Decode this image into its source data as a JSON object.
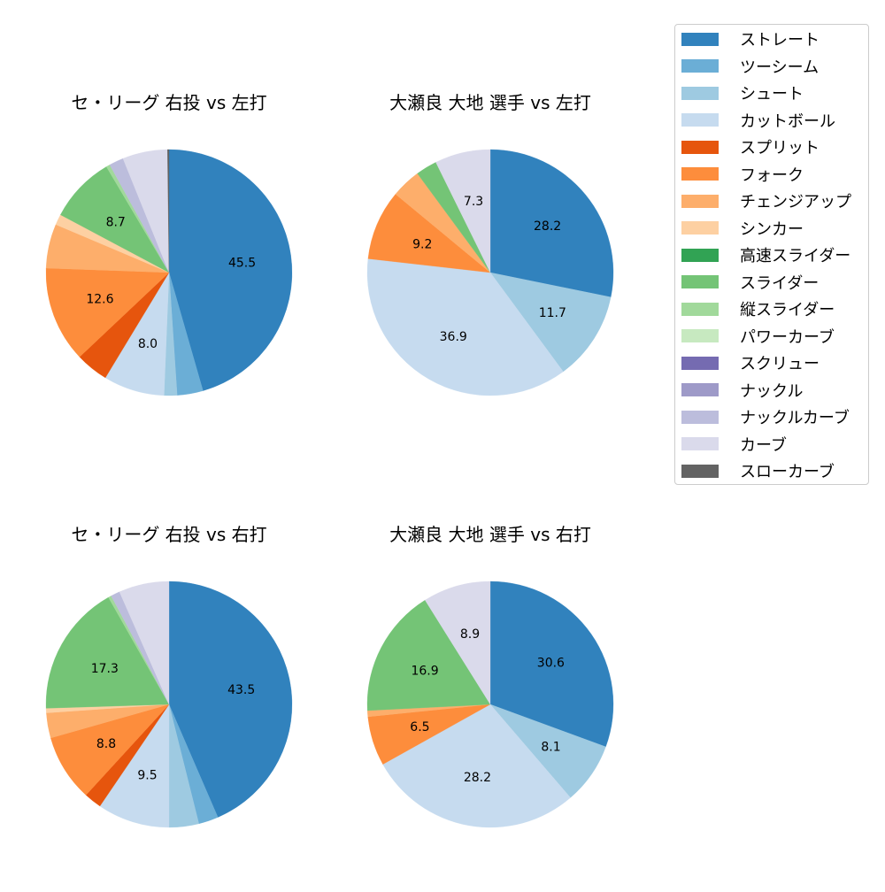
{
  "legend": {
    "items": [
      {
        "label": "ストレート",
        "color": "#3182bd"
      },
      {
        "label": "ツーシーム",
        "color": "#6baed6"
      },
      {
        "label": "シュート",
        "color": "#9ecae1"
      },
      {
        "label": "カットボール",
        "color": "#c6dbef"
      },
      {
        "label": "スプリット",
        "color": "#e6550d"
      },
      {
        "label": "フォーク",
        "color": "#fd8d3c"
      },
      {
        "label": "チェンジアップ",
        "color": "#fdae6b"
      },
      {
        "label": "シンカー",
        "color": "#fdd0a2"
      },
      {
        "label": "高速スライダー",
        "color": "#31a354"
      },
      {
        "label": "スライダー",
        "color": "#74c476"
      },
      {
        "label": "縦スライダー",
        "color": "#a1d99b"
      },
      {
        "label": "パワーカーブ",
        "color": "#c7e9c0"
      },
      {
        "label": "スクリュー",
        "color": "#756bb1"
      },
      {
        "label": "ナックル",
        "color": "#9e9ac8"
      },
      {
        "label": "ナックルカーブ",
        "color": "#bcbddc"
      },
      {
        "label": "カーブ",
        "color": "#dadaeb"
      },
      {
        "label": "スローカーブ",
        "color": "#636363"
      }
    ]
  },
  "chart_data": [
    {
      "type": "pie",
      "title": "セ・リーグ 右投 vs 左打",
      "categories": [
        "ストレート",
        "ツーシーム",
        "シュート",
        "カットボール",
        "スプリット",
        "フォーク",
        "チェンジアップ",
        "シンカー",
        "スライダー",
        "縦スライダー",
        "ナックルカーブ",
        "カーブ",
        "スローカーブ"
      ],
      "values": [
        45.5,
        3.4,
        1.7,
        8.0,
        4.3,
        12.6,
        5.8,
        1.4,
        8.7,
        0.5,
        1.9,
        5.9,
        0.2
      ],
      "labels_shown": [
        "45.5",
        "",
        "",
        "8.0",
        "",
        "12.6",
        "",
        "",
        "8.7",
        "",
        "",
        "",
        ""
      ],
      "start_angle": 90,
      "direction": "clockwise"
    },
    {
      "type": "pie",
      "title": "大瀬良 大地 選手 vs 左打",
      "categories": [
        "ストレート",
        "シュート",
        "カットボール",
        "フォーク",
        "チェンジアップ",
        "スライダー",
        "カーブ"
      ],
      "values": [
        28.2,
        11.7,
        36.9,
        9.2,
        3.9,
        2.8,
        7.3
      ],
      "labels_shown": [
        "28.2",
        "11.7",
        "36.9",
        "9.2",
        "",
        "",
        "7.3"
      ],
      "start_angle": 90,
      "direction": "clockwise"
    },
    {
      "type": "pie",
      "title": "セ・リーグ 右投 vs 右打",
      "categories": [
        "ストレート",
        "ツーシーム",
        "シュート",
        "カットボール",
        "スプリット",
        "フォーク",
        "チェンジアップ",
        "シンカー",
        "スライダー",
        "縦スライダー",
        "ナックルカーブ",
        "カーブ"
      ],
      "values": [
        43.5,
        2.6,
        3.9,
        9.5,
        2.3,
        8.8,
        3.3,
        0.6,
        17.3,
        0.4,
        1.2,
        6.6
      ],
      "labels_shown": [
        "43.5",
        "",
        "",
        "9.5",
        "",
        "8.8",
        "",
        "",
        "17.3",
        "",
        "",
        ""
      ],
      "start_angle": 90,
      "direction": "clockwise"
    },
    {
      "type": "pie",
      "title": "大瀬良 大地 選手 vs 右打",
      "categories": [
        "ストレート",
        "シュート",
        "カットボール",
        "フォーク",
        "チェンジアップ",
        "スライダー",
        "カーブ"
      ],
      "values": [
        30.6,
        8.1,
        28.2,
        6.5,
        0.8,
        16.9,
        8.9
      ],
      "labels_shown": [
        "30.6",
        "8.1",
        "28.2",
        "6.5",
        "",
        "16.9",
        "8.9"
      ],
      "start_angle": 90,
      "direction": "clockwise"
    }
  ]
}
